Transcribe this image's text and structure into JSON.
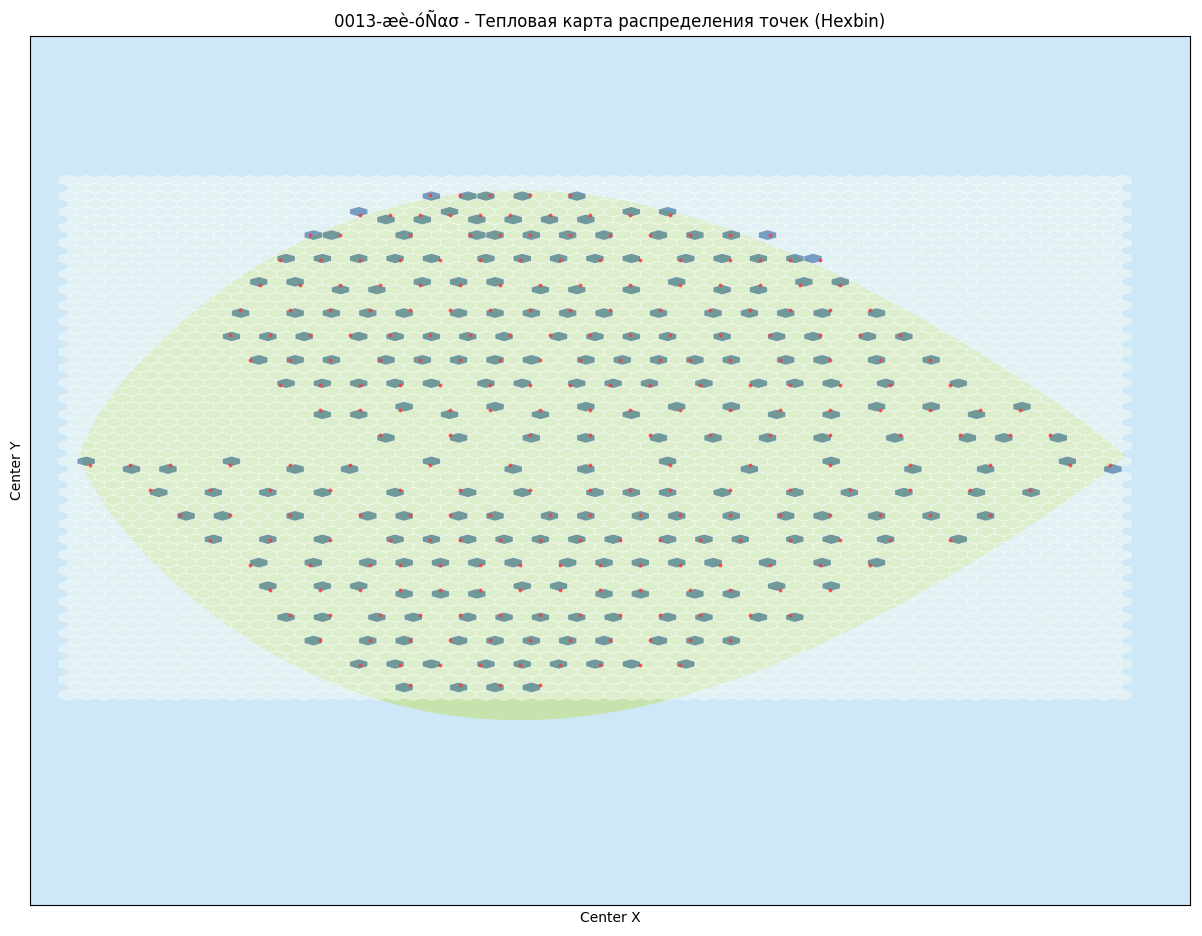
{
  "chart_data": {
    "type": "hexbin",
    "title": "0013-æè-óÑασ - Тепловая карта распределения точек (Hexbin)",
    "x_label": "Center X",
    "y_label": "Center Y",
    "tick_labels": false,
    "xlim": [
      0,
      1160
    ],
    "ylim": [
      870,
      0
    ],
    "extent": [
      38,
      1092,
      145,
      660
    ],
    "color": "#ff3b3b",
    "points": [
      [
        400,
        160
      ],
      [
        430,
        160
      ],
      [
        460,
        160
      ],
      [
        500,
        160
      ],
      [
        540,
        160
      ],
      [
        330,
        180
      ],
      [
        360,
        180
      ],
      [
        390,
        180
      ],
      [
        420,
        180
      ],
      [
        450,
        180
      ],
      [
        480,
        180
      ],
      [
        520,
        180
      ],
      [
        560,
        180
      ],
      [
        600,
        180
      ],
      [
        640,
        180
      ],
      [
        280,
        200
      ],
      [
        310,
        200
      ],
      [
        380,
        200
      ],
      [
        440,
        200
      ],
      [
        470,
        200
      ],
      [
        500,
        200
      ],
      [
        540,
        200
      ],
      [
        580,
        200
      ],
      [
        620,
        200
      ],
      [
        660,
        200
      ],
      [
        700,
        200
      ],
      [
        740,
        200
      ],
      [
        250,
        225
      ],
      [
        290,
        225
      ],
      [
        330,
        225
      ],
      [
        370,
        225
      ],
      [
        410,
        225
      ],
      [
        450,
        225
      ],
      [
        490,
        225
      ],
      [
        530,
        225
      ],
      [
        570,
        225
      ],
      [
        610,
        225
      ],
      [
        650,
        225
      ],
      [
        700,
        225
      ],
      [
        730,
        225
      ],
      [
        760,
        225
      ],
      [
        790,
        225
      ],
      [
        230,
        250
      ],
      [
        270,
        250
      ],
      [
        310,
        250
      ],
      [
        350,
        250
      ],
      [
        390,
        250
      ],
      [
        430,
        250
      ],
      [
        470,
        250
      ],
      [
        510,
        250
      ],
      [
        550,
        250
      ],
      [
        600,
        250
      ],
      [
        650,
        250
      ],
      [
        690,
        250
      ],
      [
        730,
        250
      ],
      [
        770,
        250
      ],
      [
        810,
        250
      ],
      [
        210,
        275
      ],
      [
        260,
        275
      ],
      [
        300,
        275
      ],
      [
        340,
        275
      ],
      [
        380,
        275
      ],
      [
        420,
        275
      ],
      [
        460,
        275
      ],
      [
        500,
        275
      ],
      [
        540,
        275
      ],
      [
        580,
        275
      ],
      [
        630,
        275
      ],
      [
        680,
        275
      ],
      [
        720,
        275
      ],
      [
        760,
        275
      ],
      [
        800,
        275
      ],
      [
        840,
        275
      ],
      [
        200,
        300
      ],
      [
        240,
        300
      ],
      [
        280,
        300
      ],
      [
        320,
        300
      ],
      [
        360,
        300
      ],
      [
        400,
        300
      ],
      [
        440,
        300
      ],
      [
        480,
        300
      ],
      [
        520,
        300
      ],
      [
        560,
        300
      ],
      [
        600,
        300
      ],
      [
        640,
        300
      ],
      [
        690,
        300
      ],
      [
        740,
        300
      ],
      [
        790,
        300
      ],
      [
        830,
        300
      ],
      [
        870,
        300
      ],
      [
        220,
        325
      ],
      [
        260,
        325
      ],
      [
        300,
        325
      ],
      [
        350,
        325
      ],
      [
        390,
        325
      ],
      [
        430,
        325
      ],
      [
        470,
        325
      ],
      [
        510,
        325
      ],
      [
        550,
        325
      ],
      [
        590,
        325
      ],
      [
        630,
        325
      ],
      [
        660,
        325
      ],
      [
        700,
        325
      ],
      [
        750,
        325
      ],
      [
        800,
        325
      ],
      [
        850,
        325
      ],
      [
        900,
        325
      ],
      [
        250,
        350
      ],
      [
        290,
        350
      ],
      [
        330,
        350
      ],
      [
        370,
        350
      ],
      [
        410,
        350
      ],
      [
        460,
        350
      ],
      [
        500,
        350
      ],
      [
        540,
        350
      ],
      [
        580,
        350
      ],
      [
        620,
        350
      ],
      [
        670,
        350
      ],
      [
        720,
        350
      ],
      [
        760,
        350
      ],
      [
        810,
        350
      ],
      [
        860,
        350
      ],
      [
        920,
        350
      ],
      [
        290,
        375
      ],
      [
        330,
        375
      ],
      [
        370,
        375
      ],
      [
        420,
        375
      ],
      [
        460,
        375
      ],
      [
        510,
        375
      ],
      [
        560,
        375
      ],
      [
        600,
        375
      ],
      [
        650,
        375
      ],
      [
        700,
        375
      ],
      [
        750,
        375
      ],
      [
        800,
        375
      ],
      [
        850,
        375
      ],
      [
        900,
        375
      ],
      [
        950,
        375
      ],
      [
        990,
        375
      ],
      [
        350,
        400
      ],
      [
        420,
        400
      ],
      [
        500,
        400
      ],
      [
        560,
        400
      ],
      [
        620,
        400
      ],
      [
        680,
        400
      ],
      [
        740,
        400
      ],
      [
        800,
        400
      ],
      [
        870,
        400
      ],
      [
        930,
        400
      ],
      [
        980,
        400
      ],
      [
        1020,
        400
      ],
      [
        60,
        430
      ],
      [
        100,
        430
      ],
      [
        140,
        430
      ],
      [
        200,
        430
      ],
      [
        260,
        430
      ],
      [
        320,
        430
      ],
      [
        400,
        430
      ],
      [
        480,
        430
      ],
      [
        560,
        430
      ],
      [
        640,
        430
      ],
      [
        720,
        430
      ],
      [
        800,
        430
      ],
      [
        880,
        430
      ],
      [
        960,
        430
      ],
      [
        1040,
        430
      ],
      [
        1080,
        430
      ],
      [
        120,
        455
      ],
      [
        180,
        455
      ],
      [
        240,
        455
      ],
      [
        300,
        455
      ],
      [
        370,
        455
      ],
      [
        430,
        455
      ],
      [
        500,
        455
      ],
      [
        560,
        455
      ],
      [
        600,
        455
      ],
      [
        640,
        455
      ],
      [
        700,
        455
      ],
      [
        760,
        455
      ],
      [
        820,
        455
      ],
      [
        880,
        455
      ],
      [
        940,
        455
      ],
      [
        1000,
        455
      ],
      [
        150,
        480
      ],
      [
        200,
        480
      ],
      [
        260,
        480
      ],
      [
        330,
        480
      ],
      [
        380,
        480
      ],
      [
        420,
        480
      ],
      [
        460,
        480
      ],
      [
        520,
        480
      ],
      [
        560,
        480
      ],
      [
        610,
        480
      ],
      [
        650,
        480
      ],
      [
        700,
        480
      ],
      [
        750,
        480
      ],
      [
        800,
        480
      ],
      [
        850,
        480
      ],
      [
        900,
        480
      ],
      [
        960,
        480
      ],
      [
        180,
        505
      ],
      [
        240,
        505
      ],
      [
        300,
        505
      ],
      [
        360,
        505
      ],
      [
        400,
        505
      ],
      [
        430,
        505
      ],
      [
        470,
        505
      ],
      [
        510,
        505
      ],
      [
        550,
        505
      ],
      [
        590,
        505
      ],
      [
        630,
        505
      ],
      [
        670,
        505
      ],
      [
        710,
        505
      ],
      [
        760,
        505
      ],
      [
        810,
        505
      ],
      [
        860,
        505
      ],
      [
        920,
        505
      ],
      [
        220,
        530
      ],
      [
        280,
        530
      ],
      [
        340,
        530
      ],
      [
        370,
        530
      ],
      [
        410,
        530
      ],
      [
        450,
        530
      ],
      [
        490,
        530
      ],
      [
        530,
        530
      ],
      [
        570,
        530
      ],
      [
        610,
        530
      ],
      [
        650,
        530
      ],
      [
        690,
        530
      ],
      [
        740,
        530
      ],
      [
        790,
        530
      ],
      [
        840,
        530
      ],
      [
        240,
        555
      ],
      [
        290,
        555
      ],
      [
        330,
        555
      ],
      [
        370,
        555
      ],
      [
        410,
        555
      ],
      [
        450,
        555
      ],
      [
        490,
        555
      ],
      [
        530,
        555
      ],
      [
        570,
        555
      ],
      [
        610,
        555
      ],
      [
        660,
        555
      ],
      [
        700,
        555
      ],
      [
        750,
        555
      ],
      [
        800,
        555
      ],
      [
        260,
        580
      ],
      [
        300,
        580
      ],
      [
        350,
        580
      ],
      [
        390,
        580
      ],
      [
        430,
        580
      ],
      [
        470,
        580
      ],
      [
        510,
        580
      ],
      [
        550,
        580
      ],
      [
        590,
        580
      ],
      [
        630,
        580
      ],
      [
        670,
        580
      ],
      [
        720,
        580
      ],
      [
        760,
        580
      ],
      [
        290,
        605
      ],
      [
        340,
        605
      ],
      [
        380,
        605
      ],
      [
        420,
        605
      ],
      [
        460,
        605
      ],
      [
        500,
        605
      ],
      [
        540,
        605
      ],
      [
        580,
        605
      ],
      [
        620,
        605
      ],
      [
        660,
        605
      ],
      [
        700,
        605
      ],
      [
        330,
        630
      ],
      [
        370,
        630
      ],
      [
        410,
        630
      ],
      [
        450,
        630
      ],
      [
        490,
        630
      ],
      [
        530,
        630
      ],
      [
        570,
        630
      ],
      [
        610,
        630
      ],
      [
        650,
        630
      ],
      [
        380,
        650
      ],
      [
        430,
        650
      ],
      [
        470,
        650
      ],
      [
        510,
        650
      ]
    ]
  }
}
